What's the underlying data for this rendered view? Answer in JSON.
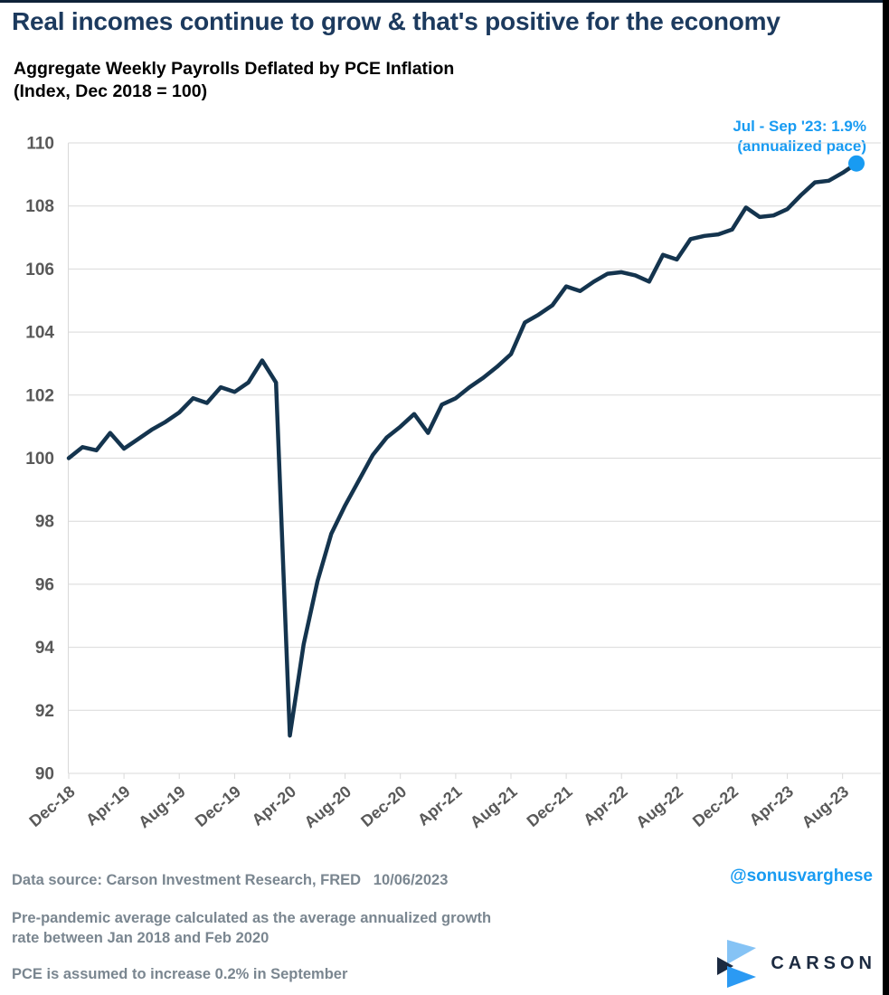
{
  "title": "Real incomes continue to grow & that's positive for the economy",
  "subtitle": {
    "line1": "Aggregate Weekly Payrolls Deflated by PCE Inflation",
    "line2": "(Index, Dec 2018 = 100)"
  },
  "annotation": {
    "line1": "Jul - Sep '23: 1.9%",
    "line2": "(annualized pace)"
  },
  "footnotes": {
    "source": "Data source: Carson Investment Research, FRED   10/06/2023",
    "note1": "Pre-pandemic average calculated as the average annualized growth rate between Jan 2018 and Feb 2020",
    "note2": "PCE is assumed to increase 0.2% in September"
  },
  "handle": "@sonusvarghese",
  "logo": {
    "text": "CARSON"
  },
  "colors": {
    "title": "#1c3a5e",
    "line": "#14344e",
    "accent_blue": "#189bf2",
    "grid": "#d9d9d9",
    "axis_text": "#595959",
    "footnote_text": "#7a8690",
    "logo_navy": "#1b2a40",
    "logo_light_blue": "#85c3f5",
    "logo_blue": "#2b9af3",
    "background": "#ffffff",
    "edge_strip": "#000000"
  },
  "chart_data": {
    "type": "line",
    "title": "Aggregate Weekly Payrolls Deflated by PCE Inflation (Index, Dec 2018 = 100)",
    "x": [
      "Dec-18",
      "Jan-19",
      "Feb-19",
      "Mar-19",
      "Apr-19",
      "May-19",
      "Jun-19",
      "Jul-19",
      "Aug-19",
      "Sep-19",
      "Oct-19",
      "Nov-19",
      "Dec-19",
      "Jan-20",
      "Feb-20",
      "Mar-20",
      "Apr-20",
      "May-20",
      "Jun-20",
      "Jul-20",
      "Aug-20",
      "Sep-20",
      "Oct-20",
      "Nov-20",
      "Dec-20",
      "Jan-21",
      "Feb-21",
      "Mar-21",
      "Apr-21",
      "May-21",
      "Jun-21",
      "Jul-21",
      "Aug-21",
      "Sep-21",
      "Oct-21",
      "Nov-21",
      "Dec-21",
      "Jan-22",
      "Feb-22",
      "Mar-22",
      "Apr-22",
      "May-22",
      "Jun-22",
      "Jul-22",
      "Aug-22",
      "Sep-22",
      "Oct-22",
      "Nov-22",
      "Dec-22",
      "Jan-23",
      "Feb-23",
      "Mar-23",
      "Apr-23",
      "May-23",
      "Jun-23",
      "Jul-23",
      "Aug-23",
      "Sep-23"
    ],
    "values": [
      100.0,
      100.35,
      100.25,
      100.8,
      100.3,
      100.6,
      100.9,
      101.15,
      101.45,
      101.9,
      101.75,
      102.25,
      102.1,
      102.4,
      103.1,
      102.4,
      91.2,
      94.1,
      96.1,
      97.6,
      98.5,
      99.3,
      100.1,
      100.65,
      101.0,
      101.4,
      100.8,
      101.7,
      101.9,
      102.25,
      102.55,
      102.9,
      103.3,
      104.3,
      104.55,
      104.85,
      105.45,
      105.3,
      105.6,
      105.85,
      105.9,
      105.8,
      105.6,
      106.45,
      106.3,
      106.95,
      107.05,
      107.1,
      107.25,
      107.95,
      107.65,
      107.7,
      107.9,
      108.35,
      108.75,
      108.8,
      109.05,
      109.35
    ],
    "x_tick_labels": [
      "Dec-18",
      "Apr-19",
      "Aug-19",
      "Dec-19",
      "Apr-20",
      "Aug-20",
      "Dec-20",
      "Apr-21",
      "Aug-21",
      "Dec-21",
      "Apr-22",
      "Aug-22",
      "Dec-22",
      "Apr-23",
      "Aug-23"
    ],
    "y_ticks": [
      90,
      92,
      94,
      96,
      98,
      100,
      102,
      104,
      106,
      108,
      110
    ],
    "ylim": [
      90,
      110
    ],
    "grid": "horizontal",
    "legend": "none",
    "annotation": "Jul - Sep '23: 1.9% (annualized pace)",
    "last_point": {
      "label": "Sep-23",
      "value": 109.35
    }
  }
}
